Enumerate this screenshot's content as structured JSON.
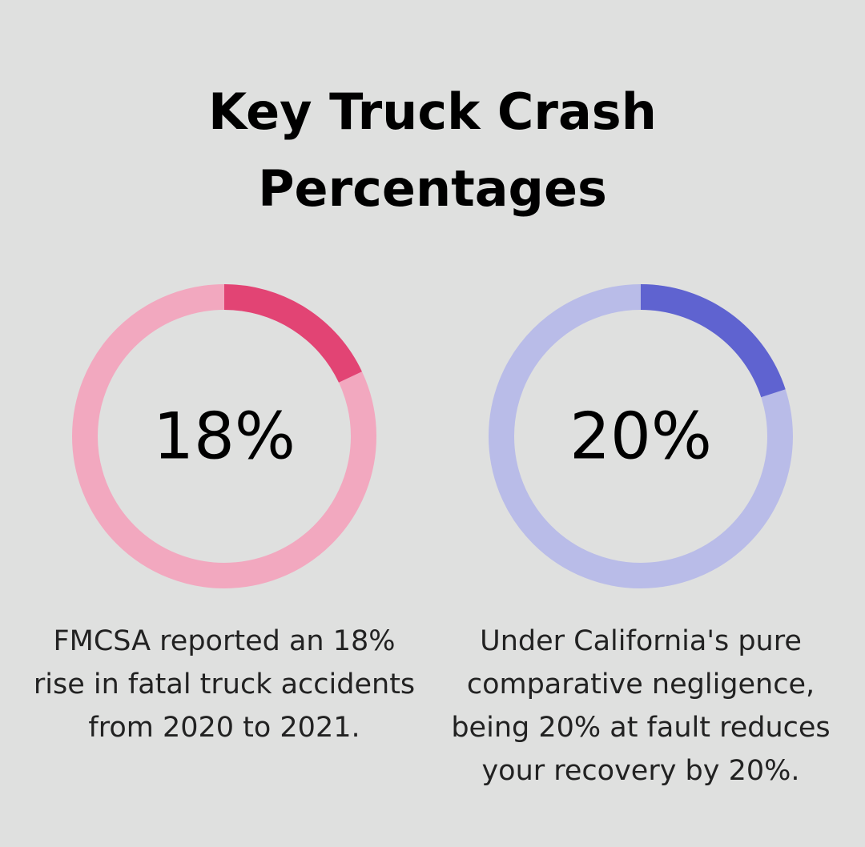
{
  "title": "Key Truck Crash Percentages",
  "chart_data": [
    {
      "type": "pie",
      "variant": "donut",
      "value_label": "18%",
      "slices": [
        {
          "value": 18,
          "color": "#e24474"
        },
        {
          "value": 82,
          "color": "#f2a8bf"
        }
      ],
      "caption": "FMCSA reported an 18% rise in fatal truck accidents from 2020 to 2021."
    },
    {
      "type": "pie",
      "variant": "donut",
      "value_label": "20%",
      "slices": [
        {
          "value": 20,
          "color": "#5f63d0"
        },
        {
          "value": 80,
          "color": "#b9bce8"
        }
      ],
      "caption": "Under California's pure comparative negligence, being 20% at fault reduces your recovery by 20%."
    }
  ]
}
